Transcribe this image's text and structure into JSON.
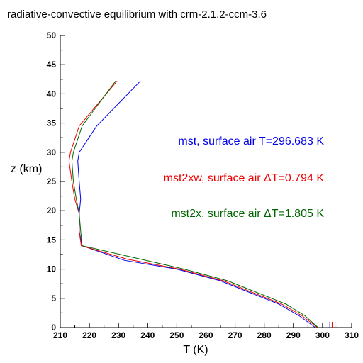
{
  "chart_data": {
    "type": "line",
    "title": "radiative-convective equilibrium with crm-2.1.2-ccm-3.6",
    "xlabel": "T (K)",
    "ylabel": "z (km)",
    "xlim": [
      210,
      310
    ],
    "ylim": [
      0,
      50
    ],
    "xticks": [
      210,
      220,
      230,
      240,
      250,
      260,
      270,
      280,
      290,
      300,
      310
    ],
    "yticks": [
      0,
      5,
      10,
      15,
      20,
      25,
      30,
      35,
      40,
      45,
      50
    ],
    "grid": false,
    "annotations": [
      {
        "text": "mst, surface air T=296.683 K",
        "color": "#0000ee"
      },
      {
        "text": "mst2xw, surface air ΔT=0.794 K",
        "color": "#ee0000"
      },
      {
        "text": "mst2x, surface air ΔT=1.805 K",
        "color": "#006400"
      }
    ],
    "series": [
      {
        "color": "#0000ee",
        "x": [
          297.6,
          292,
          285,
          275,
          265,
          250,
          232,
          217.5,
          216.5,
          216.5,
          217,
          216.5,
          216,
          216.5,
          222.5,
          237.5
        ],
        "y": [
          0,
          2,
          4,
          6,
          8,
          10,
          11.5,
          14,
          16.5,
          19.5,
          22,
          25,
          28.5,
          30,
          34.5,
          42.2
        ]
      },
      {
        "color": "#ee0000",
        "x": [
          298.3,
          293,
          286,
          276,
          266,
          251,
          233,
          217.2,
          216.5,
          216.5,
          215,
          214,
          213,
          213.5,
          216.5,
          229.5
        ],
        "y": [
          0,
          2,
          4,
          6,
          8,
          10,
          11.7,
          14,
          16.5,
          19.5,
          22,
          25,
          28.5,
          30,
          34.5,
          42.2
        ]
      },
      {
        "color": "#006400",
        "x": [
          298.5,
          294,
          287.5,
          277.5,
          267.5,
          252.5,
          235,
          217.5,
          217,
          216.5,
          215.5,
          214.5,
          214,
          214.5,
          217.5,
          229
        ],
        "y": [
          0,
          2,
          4,
          6,
          8,
          10,
          12,
          14,
          16.5,
          19.5,
          22,
          25,
          28.5,
          30,
          34.5,
          42.2
        ]
      }
    ],
    "surface_marks": [
      {
        "color": "#0000ee",
        "x": 302.5
      },
      {
        "color": "#ee0000",
        "x": 303.3
      },
      {
        "color": "#006400",
        "x": 304.3
      }
    ]
  }
}
